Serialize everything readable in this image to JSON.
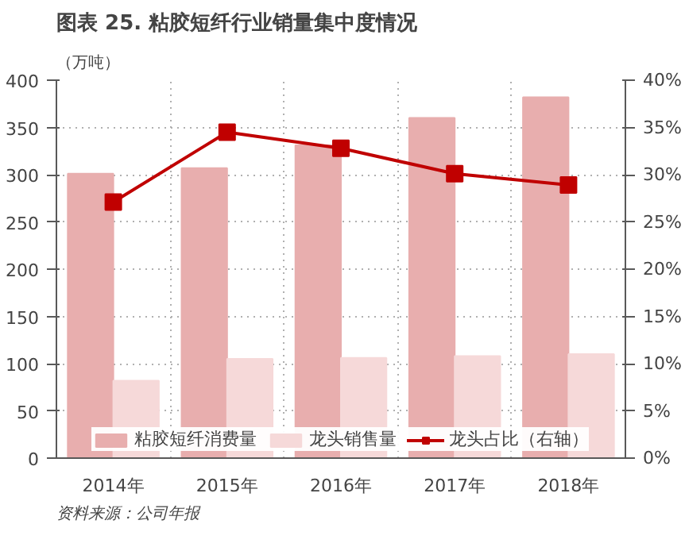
{
  "chart_data": {
    "type": "bar",
    "title": "图表 25. 粘胶短纤行业销量集中度情况",
    "ylabel": "（万吨）",
    "categories": [
      "2014年",
      "2015年",
      "2016年",
      "2017年",
      "2018年"
    ],
    "series": [
      {
        "name": "粘胶短纤消费量",
        "color": "#e8aeae",
        "values": [
          301,
          307,
          331,
          360,
          382
        ]
      },
      {
        "name": "龙头销售量",
        "color": "#f6d9d9",
        "values": [
          82,
          105,
          106,
          108,
          110
        ]
      },
      {
        "name": "龙头占比（右轴）",
        "type": "line",
        "axis": "y2",
        "color": "#c00000",
        "marker": "square",
        "values": [
          27.1,
          34.5,
          32.8,
          30.1,
          28.9
        ]
      }
    ],
    "ylim": [
      0,
      400
    ],
    "yticks": [
      0,
      50,
      100,
      150,
      200,
      250,
      300,
      350,
      400
    ],
    "y2lim": [
      0,
      40
    ],
    "y2ticks": [
      {
        "value": 0,
        "label": "0%"
      },
      {
        "value": 5,
        "label": "5%"
      },
      {
        "value": 10,
        "label": "10%"
      },
      {
        "value": 15,
        "label": "15%"
      },
      {
        "value": 20,
        "label": "20%"
      },
      {
        "value": 25,
        "label": "25%"
      },
      {
        "value": 30,
        "label": "30%"
      },
      {
        "value": 35,
        "label": "35%"
      },
      {
        "value": 40,
        "label": "40%"
      }
    ],
    "grid": true,
    "legend": "bottom",
    "annotations": [
      "资料来源：公司年报"
    ]
  }
}
